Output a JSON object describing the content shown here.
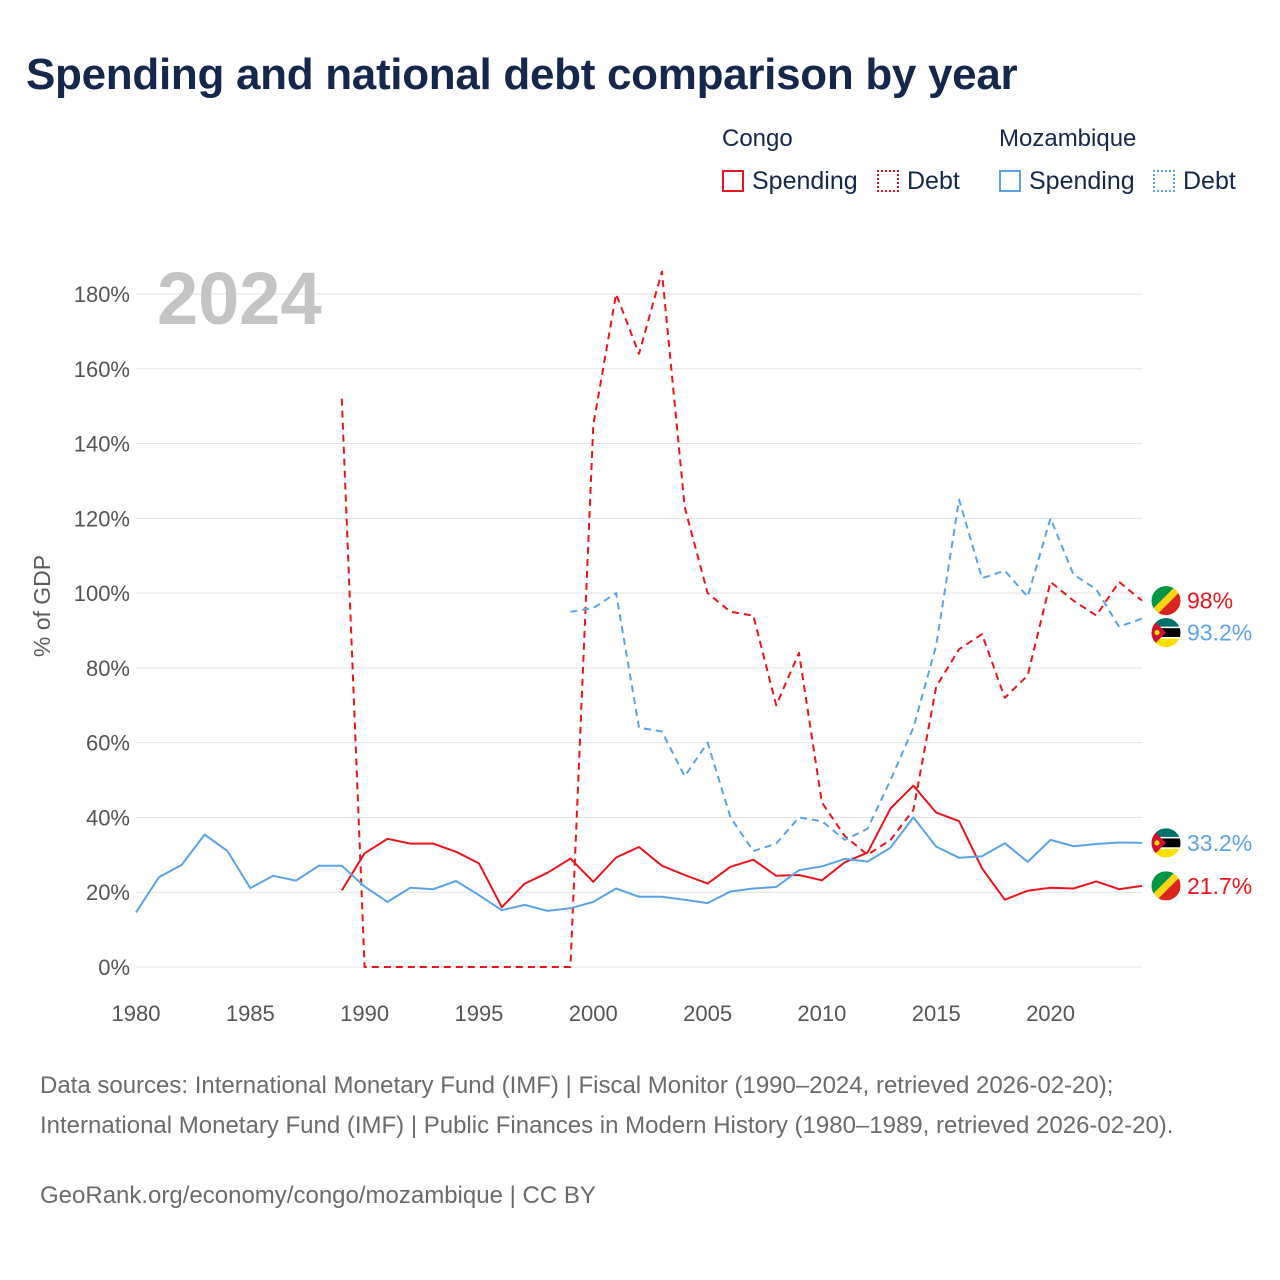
{
  "title": "Spending and national debt comparison by year",
  "legend": {
    "groups": [
      {
        "country": "Congo",
        "spending_label": "Spending",
        "debt_label": "Debt",
        "color": "#e8141e"
      },
      {
        "country": "Mozambique",
        "spending_label": "Spending",
        "debt_label": "Debt",
        "color": "#5ba3e6"
      }
    ]
  },
  "footer": {
    "sources": "Data sources: International Monetary Fund (IMF) | Fiscal Monitor (1990–2024, retrieved 2026-02-20); International Monetary Fund (IMF) | Public Finances in Modern History (1980–1989, retrieved 2026-02-20).",
    "credit": "GeoRank.org/economy/congo/mozambique | CC BY"
  },
  "chart_data": {
    "type": "line",
    "year_watermark": "2024",
    "ylabel": "% of GDP",
    "xlabel": "",
    "xlim": [
      1980,
      2024
    ],
    "ylim": [
      0,
      180
    ],
    "x_ticks": [
      1980,
      1985,
      1990,
      1995,
      2000,
      2005,
      2010,
      2015,
      2020
    ],
    "x_tick_labels": [
      "1980",
      "1985",
      "1990",
      "1995",
      "2000",
      "2005",
      "2010",
      "2015",
      "2020"
    ],
    "y_ticks": [
      0,
      20,
      40,
      60,
      80,
      100,
      120,
      140,
      160,
      180
    ],
    "y_tick_labels": [
      "0%",
      "20%",
      "40%",
      "60%",
      "80%",
      "100%",
      "120%",
      "140%",
      "160%",
      "180%"
    ],
    "grid": true,
    "series": [
      {
        "name": "Congo Spending",
        "country": "Congo",
        "metric": "spending",
        "color": "#e8141e",
        "style": "solid",
        "flag": "congo",
        "end_label": "21.7%",
        "x": [
          1989,
          1990,
          1991,
          1992,
          1993,
          1994,
          1995,
          1996,
          1997,
          1998,
          1999,
          2000,
          2001,
          2002,
          2003,
          2004,
          2005,
          2006,
          2007,
          2008,
          2009,
          2010,
          2011,
          2012,
          2013,
          2014,
          2015,
          2016,
          2017,
          2018,
          2019,
          2020,
          2021,
          2022,
          2023,
          2024
        ],
        "values": [
          20.5,
          30.4,
          34.3,
          33.0,
          33.0,
          30.8,
          27.7,
          16.0,
          22.3,
          25.2,
          29.0,
          22.8,
          29.3,
          32.1,
          27.1,
          24.6,
          22.3,
          26.8,
          28.7,
          24.4,
          24.6,
          23.2,
          28.0,
          30.6,
          42.4,
          48.5,
          41.3,
          39.0,
          26.4,
          18.0,
          20.4,
          21.2,
          21.0,
          22.9,
          20.8,
          21.7
        ]
      },
      {
        "name": "Congo Debt",
        "country": "Congo",
        "metric": "debt",
        "color": "#e8141e",
        "style": "dashed",
        "flag": "congo",
        "end_label": "98%",
        "x": [
          1989,
          1990,
          1991,
          1992,
          1993,
          1994,
          1995,
          1996,
          1997,
          1998,
          1999,
          2000,
          2001,
          2002,
          2003,
          2004,
          2005,
          2006,
          2007,
          2008,
          2009,
          2010,
          2011,
          2012,
          2013,
          2014,
          2015,
          2016,
          2017,
          2018,
          2019,
          2020,
          2021,
          2022,
          2023,
          2024
        ],
        "values": [
          152,
          0,
          0,
          0,
          0,
          0,
          0,
          0,
          0,
          0,
          0,
          145,
          180,
          164,
          186,
          123,
          100,
          95,
          94,
          70,
          84,
          44,
          35,
          30,
          34,
          42,
          75,
          85,
          89,
          72,
          78,
          103,
          98,
          94,
          103,
          98
        ]
      },
      {
        "name": "Mozambique Spending",
        "country": "Mozambique",
        "metric": "spending",
        "color": "#5ba3e6",
        "style": "solid",
        "flag": "mozambique",
        "end_label": "33.2%",
        "x": [
          1980,
          1981,
          1982,
          1983,
          1984,
          1985,
          1986,
          1987,
          1988,
          1989,
          1990,
          1991,
          1992,
          1993,
          1994,
          1995,
          1996,
          1997,
          1998,
          1999,
          2000,
          2001,
          2002,
          2003,
          2004,
          2005,
          2006,
          2007,
          2008,
          2009,
          2010,
          2011,
          2012,
          2013,
          2014,
          2015,
          2016,
          2017,
          2018,
          2019,
          2020,
          2021,
          2022,
          2023,
          2024
        ],
        "values": [
          14.6,
          24.0,
          27.3,
          35.4,
          31.0,
          21.1,
          24.4,
          23.1,
          27.1,
          27.1,
          21.5,
          17.4,
          21.2,
          20.8,
          23.0,
          19.2,
          15.2,
          16.6,
          15.0,
          15.7,
          17.4,
          21.0,
          18.8,
          18.8,
          18.0,
          17.1,
          20.2,
          21.0,
          21.4,
          25.9,
          26.9,
          28.9,
          28.2,
          31.9,
          40.0,
          32.2,
          29.2,
          29.6,
          33.1,
          28.1,
          34.0,
          32.3,
          32.9,
          33.3,
          33.2
        ]
      },
      {
        "name": "Mozambique Debt",
        "country": "Mozambique",
        "metric": "debt",
        "color": "#5ba3e6",
        "style": "dashed",
        "flag": "mozambique",
        "end_label": "93.2%",
        "x": [
          1999,
          2000,
          2001,
          2002,
          2003,
          2004,
          2005,
          2006,
          2007,
          2008,
          2009,
          2010,
          2011,
          2012,
          2013,
          2014,
          2015,
          2016,
          2017,
          2018,
          2019,
          2020,
          2021,
          2022,
          2023,
          2024
        ],
        "values": [
          95,
          96,
          100,
          64,
          63,
          51,
          60,
          40,
          31,
          33,
          40,
          39,
          34,
          37,
          50,
          64,
          86,
          125,
          104,
          106,
          99,
          120,
          105,
          101,
          91,
          93.2
        ]
      }
    ]
  }
}
